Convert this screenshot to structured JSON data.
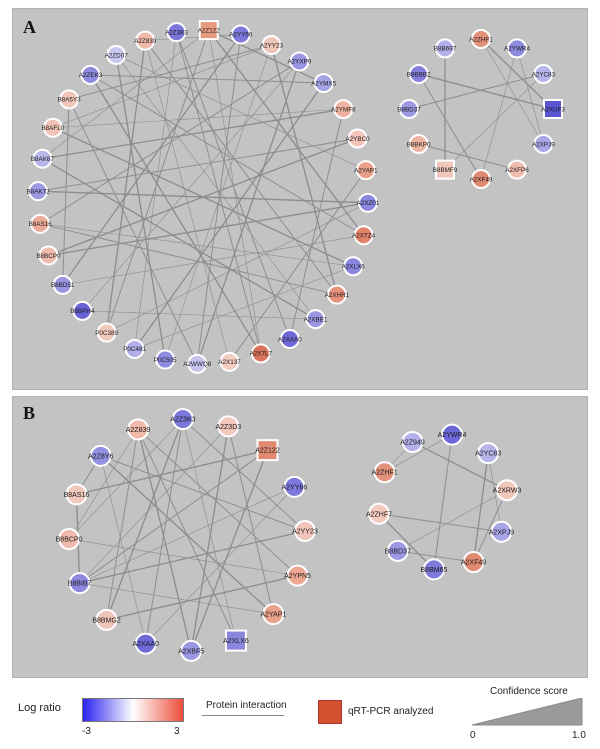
{
  "panel_a": {
    "label": "A",
    "left_network": {
      "nodes": [
        {
          "id": "A2Z122",
          "color": "#e89a7f",
          "shape": "square"
        },
        {
          "id": "A2YY66",
          "color": "#7d78dc",
          "shape": "circle"
        },
        {
          "id": "A2YY23",
          "color": "#f0c4b8",
          "shape": "circle"
        },
        {
          "id": "A2YXP9",
          "color": "#9a96e3",
          "shape": "circle"
        },
        {
          "id": "A2YMX5",
          "color": "#a6a3e6",
          "shape": "circle"
        },
        {
          "id": "A2YMF8",
          "color": "#f0b3a3",
          "shape": "circle"
        },
        {
          "id": "A2YBC0",
          "color": "#f3c5b9",
          "shape": "circle"
        },
        {
          "id": "A2YAP1",
          "color": "#e9a08b",
          "shape": "circle"
        },
        {
          "id": "A2XZ01",
          "color": "#8b87df",
          "shape": "circle"
        },
        {
          "id": "A2XTZ4",
          "color": "#e2836a",
          "shape": "circle"
        },
        {
          "id": "A2XLX6",
          "color": "#8a86de",
          "shape": "circle"
        },
        {
          "id": "A2XHR1",
          "color": "#e6917b",
          "shape": "circle"
        },
        {
          "id": "A2XBE1",
          "color": "#9a96e2",
          "shape": "circle"
        },
        {
          "id": "A2XAA0",
          "color": "#6f69d8",
          "shape": "circle"
        },
        {
          "id": "A2X7L7",
          "color": "#d9725a",
          "shape": "circle"
        },
        {
          "id": "A2X137",
          "color": "#f4cdc1",
          "shape": "circle"
        },
        {
          "id": "A2WWQ8",
          "color": "#c5c3ee",
          "shape": "circle"
        },
        {
          "id": "P0C505",
          "color": "#8e8adf",
          "shape": "circle"
        },
        {
          "id": "P0C481",
          "color": "#b1aee9",
          "shape": "circle"
        },
        {
          "id": "P0C389",
          "color": "#f2c9bd",
          "shape": "circle"
        },
        {
          "id": "B8BPH4",
          "color": "#6964d6",
          "shape": "circle"
        },
        {
          "id": "B8BD51",
          "color": "#9995e2",
          "shape": "circle"
        },
        {
          "id": "B8BCP0",
          "color": "#f0bbae",
          "shape": "circle"
        },
        {
          "id": "B8AS16",
          "color": "#ecab99",
          "shape": "circle"
        },
        {
          "id": "B8AK72",
          "color": "#9d99e3",
          "shape": "circle"
        },
        {
          "id": "B8AK67",
          "color": "#b9b6eb",
          "shape": "circle"
        },
        {
          "id": "B8AFL0",
          "color": "#f1c3b6",
          "shape": "circle"
        },
        {
          "id": "B8A5Y3",
          "color": "#f2c6ba",
          "shape": "circle"
        },
        {
          "id": "A2ZEK3",
          "color": "#8f8be0",
          "shape": "circle"
        },
        {
          "id": "A2ZD07",
          "color": "#c9c7ef",
          "shape": "circle"
        },
        {
          "id": "A2Z839",
          "color": "#f0b9aa",
          "shape": "circle"
        },
        {
          "id": "A2Z3K3",
          "color": "#7a76da",
          "shape": "circle"
        }
      ]
    },
    "right_network": {
      "nodes": [
        {
          "id": "A2YWR4",
          "color": "#8e8adf",
          "shape": "circle"
        },
        {
          "id": "A2YC83",
          "color": "#b7b4ea",
          "shape": "circle"
        },
        {
          "id": "A2XUF3",
          "color": "#5954d2",
          "shape": "square"
        },
        {
          "id": "A2XPJ9",
          "color": "#a9a6e7",
          "shape": "circle"
        },
        {
          "id": "A2XFP6",
          "color": "#f0bcae",
          "shape": "circle"
        },
        {
          "id": "A2XF49",
          "color": "#e08a72",
          "shape": "circle"
        },
        {
          "id": "B8BMF9",
          "color": "#f1c7bb",
          "shape": "square"
        },
        {
          "id": "B8BKP0",
          "color": "#eeb4a4",
          "shape": "circle"
        },
        {
          "id": "B8BD37",
          "color": "#9c98e3",
          "shape": "circle"
        },
        {
          "id": "B8BBB2",
          "color": "#8580dd",
          "shape": "circle"
        },
        {
          "id": "B8B697",
          "color": "#b4b1ea",
          "shape": "circle"
        },
        {
          "id": "A2ZHF1",
          "color": "#e4917b",
          "shape": "circle"
        }
      ]
    }
  },
  "panel_b": {
    "label": "B",
    "left_network": {
      "nodes": [
        {
          "id": "A2Z3K3",
          "color": "#7a76da",
          "shape": "circle"
        },
        {
          "id": "A2Z3D3",
          "color": "#f2c7bb",
          "shape": "circle"
        },
        {
          "id": "A2Z122",
          "color": "#e08a72",
          "shape": "square"
        },
        {
          "id": "A2YY66",
          "color": "#7d78dc",
          "shape": "circle"
        },
        {
          "id": "A2YY23",
          "color": "#f0c4b8",
          "shape": "circle"
        },
        {
          "id": "A2YPN5",
          "color": "#eca692",
          "shape": "circle"
        },
        {
          "id": "A2YAP1",
          "color": "#e9a08b",
          "shape": "circle"
        },
        {
          "id": "A2XLX6",
          "color": "#8a86de",
          "shape": "square"
        },
        {
          "id": "A2XBF5",
          "color": "#9a96e2",
          "shape": "circle"
        },
        {
          "id": "A2XAA0",
          "color": "#6f69d8",
          "shape": "circle"
        },
        {
          "id": "B8BMG2",
          "color": "#f1c6ba",
          "shape": "circle"
        },
        {
          "id": "B8BIB7",
          "color": "#8d89df",
          "shape": "circle"
        },
        {
          "id": "B8BCP0",
          "color": "#f0bbae",
          "shape": "circle"
        },
        {
          "id": "B8AS16",
          "color": "#f2c8bc",
          "shape": "circle"
        },
        {
          "id": "A2Z8Y6",
          "color": "#9490e1",
          "shape": "circle"
        },
        {
          "id": "A2Z839",
          "color": "#f0b9aa",
          "shape": "circle"
        }
      ]
    },
    "right_network": {
      "nodes": [
        {
          "id": "A2Z949",
          "color": "#b3b0ea",
          "shape": "circle"
        },
        {
          "id": "A2YWR4",
          "color": "#6d68d7",
          "shape": "circle"
        },
        {
          "id": "A2YC83",
          "color": "#b7b4ea",
          "shape": "circle"
        },
        {
          "id": "A2XRW3",
          "color": "#f2c8bc",
          "shape": "circle"
        },
        {
          "id": "A2XPJ9",
          "color": "#a9a6e7",
          "shape": "circle"
        },
        {
          "id": "A2XF49",
          "color": "#e08a72",
          "shape": "circle"
        },
        {
          "id": "B8BM65",
          "color": "#7e7adb",
          "shape": "circle"
        },
        {
          "id": "B8BD37",
          "color": "#9c98e3",
          "shape": "circle"
        },
        {
          "id": "A2ZHF7",
          "color": "#f3cabe",
          "shape": "circle"
        },
        {
          "id": "A2ZHF1",
          "color": "#e4917b",
          "shape": "circle"
        }
      ]
    }
  },
  "legend": {
    "log_ratio_label": "Log ratio",
    "log_ratio_min": "-3",
    "log_ratio_max": "3",
    "gradient_colors": [
      "#2a22f0",
      "#ffffff",
      "#ee4d3a"
    ],
    "protein_interaction_label": "Protein interaction",
    "qrt_label": "qRT-PCR analyzed",
    "qrt_color": "#d4502f",
    "confidence_label": "Confidence score",
    "confidence_min": "0",
    "confidence_max": "1.0"
  }
}
